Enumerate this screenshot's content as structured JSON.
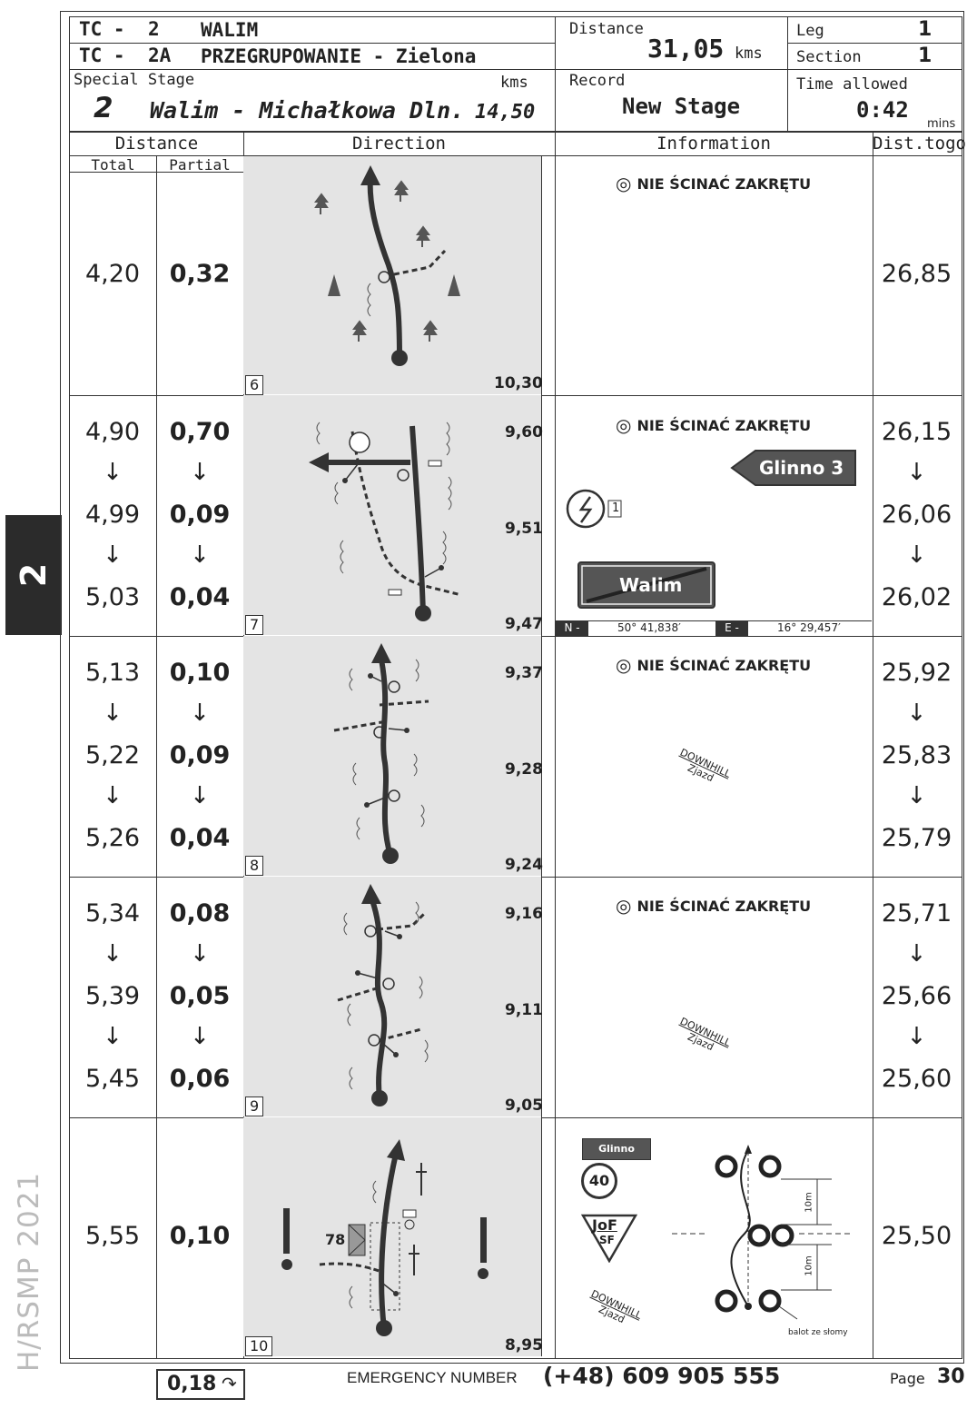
{
  "header": {
    "tc1_label": "TC -",
    "tc1_num": "2",
    "tc1_name": "WALIM",
    "tc2_label": "TC -",
    "tc2_num": "2A",
    "tc2_name": "PRZEGRUPOWANIE - Zielona",
    "special_stage_label": "Special Stage",
    "kms_label": "kms",
    "ss_num": "2",
    "ss_name": "Walim - Michałkowa Dln.",
    "ss_len": "14,50",
    "distance_label": "Distance",
    "distance_value": "31,05",
    "distance_unit": "kms",
    "record_label": "Record",
    "record_value": "New Stage",
    "leg_label": "Leg",
    "leg_value": "1",
    "section_label": "Section",
    "section_value": "1",
    "time_allowed_label": "Time allowed",
    "time_allowed_value": "0:42",
    "mins_label": "mins"
  },
  "columns": {
    "distance": "Distance",
    "total": "Total",
    "partial": "Partial",
    "direction": "Direction",
    "information": "Information",
    "dist_togo": "Dist.togo"
  },
  "rows": [
    {
      "box": "6",
      "totals": [
        "4,20"
      ],
      "partials": [
        "0,32"
      ],
      "togo": [
        "26,85"
      ],
      "odos": [
        "10,30"
      ]
    },
    {
      "box": "7",
      "totals": [
        "4,90",
        "4,99",
        "5,03"
      ],
      "partials": [
        "0,70",
        "0,09",
        "0,04"
      ],
      "togo": [
        "26,15",
        "26,06",
        "26,02"
      ],
      "odos": [
        "9,60",
        "9,51",
        "9,47"
      ]
    },
    {
      "box": "8",
      "totals": [
        "5,13",
        "5,22",
        "5,26"
      ],
      "partials": [
        "0,10",
        "0,09",
        "0,04"
      ],
      "togo": [
        "25,92",
        "25,83",
        "25,79"
      ],
      "odos": [
        "9,37",
        "9,28",
        "9,24"
      ]
    },
    {
      "box": "9",
      "totals": [
        "5,34",
        "5,39",
        "5,45"
      ],
      "partials": [
        "0,08",
        "0,05",
        "0,06"
      ],
      "togo": [
        "25,71",
        "25,66",
        "25,60"
      ],
      "odos": [
        "9,16",
        "9,11",
        "9,05"
      ]
    },
    {
      "box": "10",
      "totals": [
        "5,55"
      ],
      "partials": [
        "0,10"
      ],
      "togo": [
        "25,50"
      ],
      "odos": [
        "8,95"
      ]
    }
  ],
  "info": {
    "no_cut": "NIE ŚCINAĆ ZAKRĘTU",
    "sign_glinno": "Glinno  3",
    "sign_walim": "Walim",
    "gps_n_label": "N -",
    "gps_n": "50° 41,838′",
    "gps_e_label": "E -",
    "gps_e": "16° 29,457′",
    "downhill": "DOWNHILL",
    "zjazd": "Zjazd",
    "small_sign": "Glinno",
    "speed": "40",
    "jof": "JoF",
    "sf": "SF",
    "ten_m": "10m",
    "balot": "balot ze słomy",
    "icon_1": "1",
    "num_78": "78"
  },
  "footer": {
    "carry": "0,18",
    "emergency_label": "EMERGENCY NUMBER",
    "emergency_number": "(+48) 609 905 555",
    "page_label": "Page",
    "page_num": "30"
  },
  "side": {
    "tab": "2",
    "text": "H/RSMP 2021"
  }
}
